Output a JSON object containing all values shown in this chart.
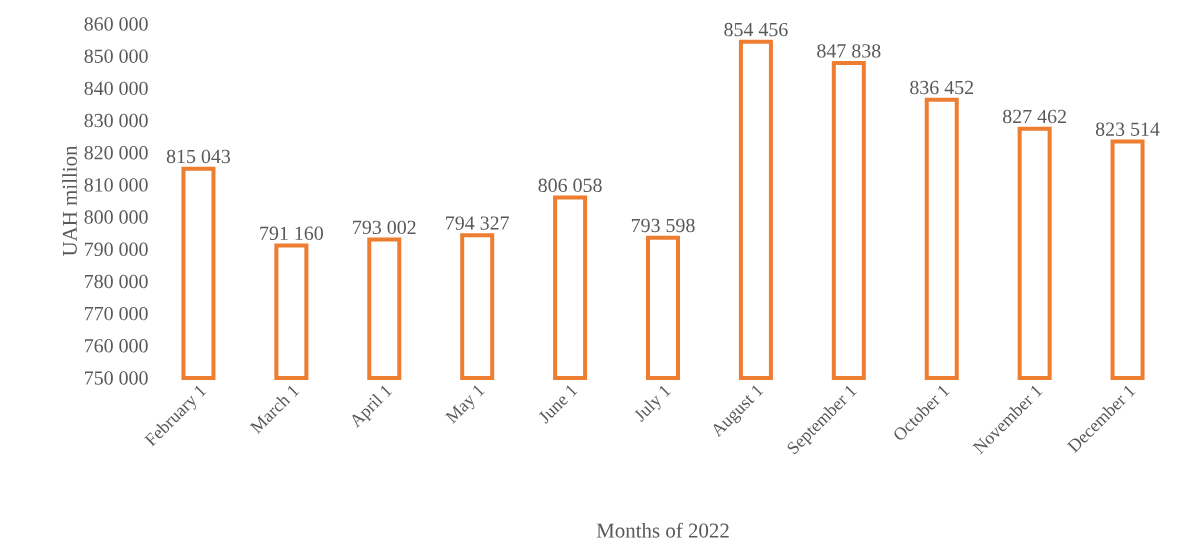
{
  "chart_data": {
    "type": "bar",
    "xlabel": "Months of 2022",
    "ylabel": "UAH million",
    "categories": [
      "February 1",
      "March 1",
      "April 1",
      "May 1",
      "June 1",
      "July 1",
      "August 1",
      "September 1",
      "October 1",
      "November 1",
      "December 1"
    ],
    "values": [
      815043,
      791160,
      793002,
      794327,
      806058,
      793598,
      854456,
      847838,
      836452,
      827462,
      823514
    ],
    "value_labels": [
      "815 043",
      "791 160",
      "793 002",
      "794 327",
      "806 058",
      "793 598",
      "854 456",
      "847 838",
      "836 452",
      "827 462",
      "823 514"
    ],
    "color": "#ed7d31",
    "ylim": [
      750000,
      860000
    ],
    "yticks": [
      {
        "value": 750000,
        "label": "750 000"
      },
      {
        "value": 760000,
        "label": "760 000"
      },
      {
        "value": 770000,
        "label": "770 000"
      },
      {
        "value": 780000,
        "label": "780 000"
      },
      {
        "value": 790000,
        "label": "790 000"
      },
      {
        "value": 800000,
        "label": "800 000"
      },
      {
        "value": 810000,
        "label": "810 000"
      },
      {
        "value": 820000,
        "label": "820 000"
      },
      {
        "value": 830000,
        "label": "830 000"
      },
      {
        "value": 840000,
        "label": "840 000"
      },
      {
        "value": 850000,
        "label": "850 000"
      },
      {
        "value": 860000,
        "label": "860 000"
      }
    ],
    "grid": false
  }
}
